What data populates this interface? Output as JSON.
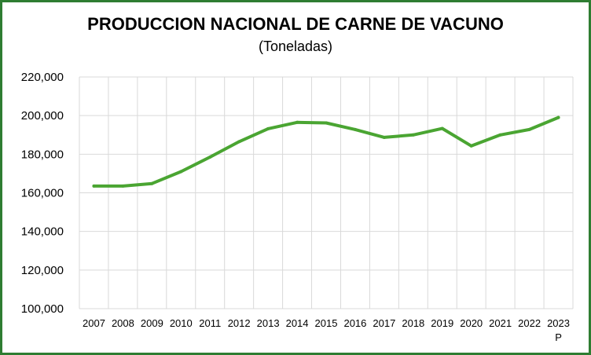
{
  "chart_data": {
    "type": "line",
    "title": "PRODUCCION NACIONAL DE CARNE DE VACUNO",
    "subtitle": "(Toneladas)",
    "xlabel": "",
    "ylabel": "",
    "categories": [
      "2007",
      "2008",
      "2009",
      "2010",
      "2011",
      "2012",
      "2013",
      "2014",
      "2015",
      "2016",
      "2017",
      "2018",
      "2019",
      "2020",
      "2021",
      "2022",
      "2023"
    ],
    "category_sublabels": [
      "",
      "",
      "",
      "",
      "",
      "",
      "",
      "",
      "",
      "",
      "",
      "",
      "",
      "",
      "",
      "",
      "P"
    ],
    "series": [
      {
        "values": [
          163500,
          163500,
          164800,
          171000,
          178500,
          186500,
          193200,
          196500,
          196200,
          192800,
          188700,
          190000,
          193300,
          184300,
          190000,
          192800,
          199000
        ]
      }
    ],
    "ylim": [
      100000,
      220000
    ],
    "yticks": [
      100000,
      120000,
      140000,
      160000,
      180000,
      200000,
      220000
    ],
    "ytick_labels": [
      "100,000",
      "120,000",
      "140,000",
      "160,000",
      "180,000",
      "200,000",
      "220,000"
    ],
    "grid": true,
    "line_color": "#4aa532",
    "grid_color": "#d9d9d9",
    "frame_color": "#2e7d32"
  }
}
